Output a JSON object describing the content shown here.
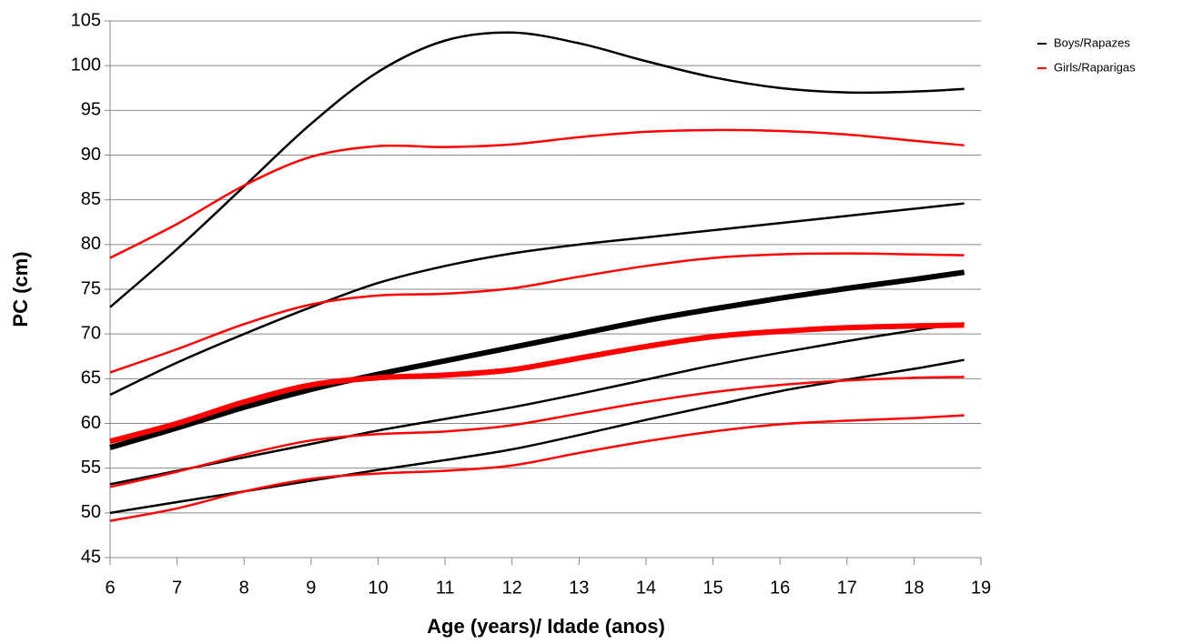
{
  "chart_data": {
    "type": "line",
    "x_label": "Age (years)/ Idade (anos)",
    "y_label": "PC (cm)",
    "x": [
      6,
      7,
      8,
      9,
      10,
      11,
      12,
      13,
      14,
      15,
      16,
      17,
      18,
      18.75
    ],
    "xlim": [
      6,
      19
    ],
    "xticks": [
      6,
      7,
      8,
      9,
      10,
      11,
      12,
      13,
      14,
      15,
      16,
      17,
      18,
      19
    ],
    "ylim": [
      45,
      105
    ],
    "yticks": [
      45,
      50,
      55,
      60,
      65,
      70,
      75,
      80,
      85,
      90,
      95,
      100,
      105
    ],
    "grid": true,
    "legend": "top-right",
    "series": [
      {
        "name": "Boys/Rapazes",
        "color": "#000000",
        "widths": [
          2.5,
          2.5,
          6,
          2.5,
          2.5
        ],
        "curves": [
          [
            73,
            79.5,
            86.5,
            93.5,
            99.3,
            102.8,
            103.7,
            102.5,
            100.5,
            98.7,
            97.5,
            97,
            97.1,
            97.4
          ],
          [
            63.2,
            66.8,
            70,
            73,
            75.7,
            77.6,
            79,
            80,
            80.8,
            81.6,
            82.4,
            83.2,
            84,
            84.6
          ],
          [
            57.3,
            59.5,
            61.8,
            63.8,
            65.5,
            67,
            68.5,
            70,
            71.5,
            72.8,
            74,
            75.1,
            76.1,
            76.9
          ],
          [
            53.2,
            54.7,
            56.2,
            57.7,
            59.2,
            60.5,
            61.8,
            63.3,
            64.9,
            66.5,
            67.9,
            69.2,
            70.4,
            71.2
          ],
          [
            50,
            51.2,
            52.4,
            53.6,
            54.8,
            55.9,
            57.1,
            58.7,
            60.4,
            62,
            63.6,
            64.9,
            66.1,
            67.1
          ]
        ]
      },
      {
        "name": "Girls/Raparigas",
        "color": "#ff0000",
        "widths": [
          2.5,
          2.5,
          6,
          2.5,
          2.5
        ],
        "curves": [
          [
            78.5,
            82.3,
            86.6,
            89.8,
            91,
            90.9,
            91.2,
            92,
            92.6,
            92.8,
            92.7,
            92.3,
            91.6,
            91.1
          ],
          [
            65.7,
            68.3,
            71.1,
            73.3,
            74.3,
            74.5,
            75.1,
            76.4,
            77.6,
            78.5,
            78.9,
            79,
            78.9,
            78.8
          ],
          [
            58,
            60,
            62.4,
            64.3,
            65.1,
            65.4,
            66,
            67.3,
            68.6,
            69.7,
            70.3,
            70.7,
            70.9,
            71
          ],
          [
            52.9,
            54.6,
            56.5,
            58.1,
            58.8,
            59.1,
            59.8,
            61.1,
            62.4,
            63.5,
            64.3,
            64.8,
            65.1,
            65.2
          ],
          [
            49.1,
            50.5,
            52.4,
            53.8,
            54.4,
            54.7,
            55.3,
            56.7,
            58,
            59.1,
            59.9,
            60.3,
            60.6,
            60.9
          ]
        ]
      }
    ]
  }
}
